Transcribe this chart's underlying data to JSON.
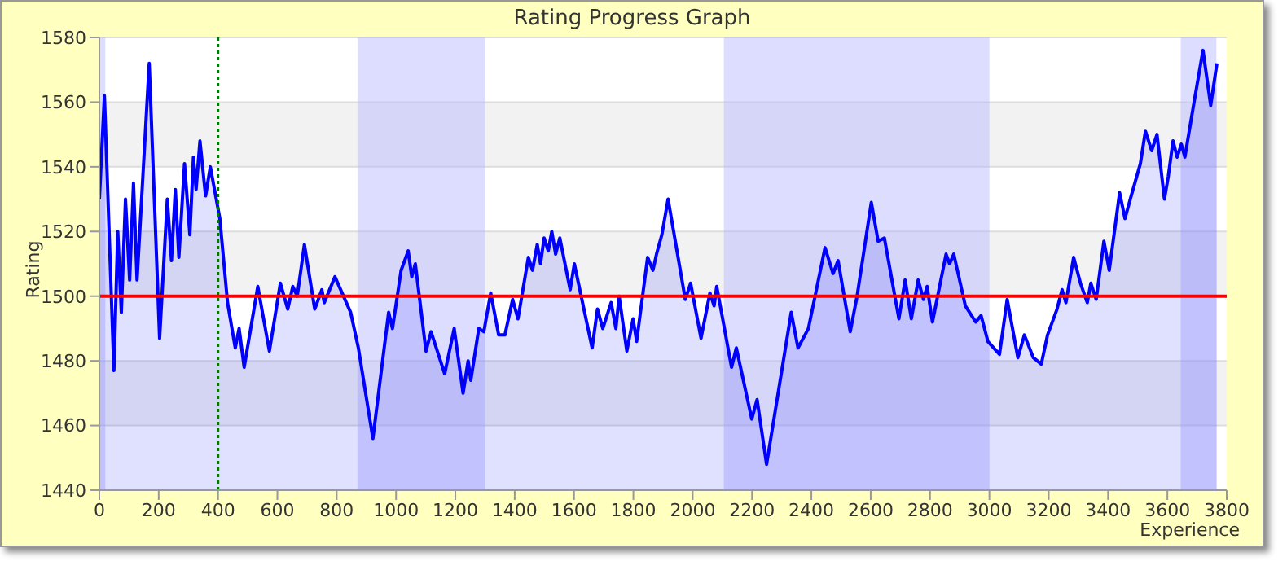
{
  "chart_data": {
    "type": "area",
    "title": "Rating Progress Graph",
    "xlabel": "Experience",
    "ylabel": "Rating",
    "xlim": [
      0,
      3800
    ],
    "xticks": [
      0,
      200,
      400,
      600,
      800,
      1000,
      1200,
      1400,
      1600,
      1800,
      2000,
      2200,
      2400,
      2600,
      2800,
      3000,
      3200,
      3400,
      3600,
      3800
    ],
    "ylim": [
      1440,
      1580
    ],
    "yticks": [
      1440,
      1460,
      1480,
      1500,
      1520,
      1540,
      1560,
      1580
    ],
    "grid": "y",
    "marker": "none",
    "line_style": "solid",
    "ref_lines": [
      {
        "axis": "y",
        "value": 1500,
        "color": "#ff0000",
        "line_style": "solid"
      },
      {
        "axis": "x",
        "value": 400,
        "color": "#007700",
        "line_style": "dotted"
      }
    ],
    "bands": [
      {
        "axis": "x",
        "from": 0,
        "to": 20,
        "color": "#b4b4ff"
      },
      {
        "axis": "x",
        "from": 870,
        "to": 1300,
        "color": "#b4b4ff"
      },
      {
        "axis": "x",
        "from": 2105,
        "to": 3000,
        "color": "#b4b4ff"
      },
      {
        "axis": "x",
        "from": 3645,
        "to": 3765,
        "color": "#b4b4ff"
      }
    ],
    "series": [
      {
        "color": "#0000ff",
        "x": [
          0,
          17,
          49,
          62,
          74,
          88,
          102,
          115,
          127,
          168,
          203,
          229,
          243,
          256,
          268,
          287,
          305,
          317,
          326,
          339,
          358,
          374,
          406,
          432,
          458,
          471,
          488,
          534,
          573,
          610,
          635,
          652,
          667,
          691,
          726,
          750,
          758,
          794,
          847,
          873,
          922,
          975,
          988,
          1017,
          1041,
          1053,
          1065,
          1101,
          1118,
          1164,
          1196,
          1226,
          1243,
          1252,
          1279,
          1296,
          1319,
          1346,
          1367,
          1393,
          1411,
          1446,
          1460,
          1476,
          1487,
          1499,
          1513,
          1525,
          1538,
          1552,
          1587,
          1601,
          1661,
          1679,
          1697,
          1725,
          1741,
          1752,
          1778,
          1799,
          1811,
          1848,
          1866,
          1878,
          1896,
          1917,
          1975,
          1993,
          2028,
          2058,
          2072,
          2081,
          2131,
          2147,
          2199,
          2217,
          2249,
          2332,
          2355,
          2390,
          2446,
          2473,
          2490,
          2531,
          2554,
          2602,
          2625,
          2646,
          2695,
          2716,
          2737,
          2760,
          2778,
          2790,
          2808,
          2854,
          2866,
          2880,
          2919,
          2954,
          2972,
          2995,
          3034,
          3060,
          3096,
          3118,
          3148,
          3175,
          3196,
          3228,
          3245,
          3258,
          3284,
          3307,
          3330,
          3342,
          3360,
          3386,
          3404,
          3439,
          3457,
          3478,
          3509,
          3526,
          3547,
          3565,
          3590,
          3603,
          3619,
          3633,
          3647,
          3659,
          3690,
          3720,
          3746,
          3767
        ],
        "values": [
          1530,
          1562,
          1477,
          1520,
          1495,
          1530,
          1505,
          1535,
          1505,
          1572,
          1487,
          1530,
          1511,
          1533,
          1512,
          1541,
          1519,
          1543,
          1533,
          1548,
          1531,
          1540,
          1524,
          1498,
          1484,
          1490,
          1478,
          1503,
          1483,
          1504,
          1496,
          1503,
          1500,
          1516,
          1496,
          1502,
          1498,
          1506,
          1495,
          1484,
          1456,
          1495,
          1490,
          1508,
          1514,
          1506,
          1510,
          1483,
          1489,
          1476,
          1490,
          1470,
          1480,
          1474,
          1490,
          1489,
          1501,
          1488,
          1488,
          1499,
          1493,
          1512,
          1508,
          1516,
          1510,
          1518,
          1514,
          1520,
          1513,
          1518,
          1502,
          1510,
          1484,
          1496,
          1490,
          1498,
          1490,
          1500,
          1483,
          1493,
          1486,
          1512,
          1508,
          1513,
          1519,
          1530,
          1499,
          1504,
          1487,
          1501,
          1497,
          1503,
          1478,
          1484,
          1462,
          1468,
          1448,
          1495,
          1484,
          1490,
          1515,
          1507,
          1511,
          1489,
          1500,
          1529,
          1517,
          1518,
          1493,
          1505,
          1493,
          1505,
          1499,
          1503,
          1492,
          1513,
          1510,
          1513,
          1497,
          1492,
          1494,
          1486,
          1482,
          1499,
          1481,
          1488,
          1481,
          1479,
          1488,
          1496,
          1502,
          1498,
          1512,
          1504,
          1498,
          1504,
          1499,
          1517,
          1508,
          1532,
          1524,
          1531,
          1541,
          1551,
          1545,
          1550,
          1530,
          1537,
          1548,
          1543,
          1547,
          1543,
          1560,
          1576,
          1559,
          1572
        ]
      }
    ]
  }
}
